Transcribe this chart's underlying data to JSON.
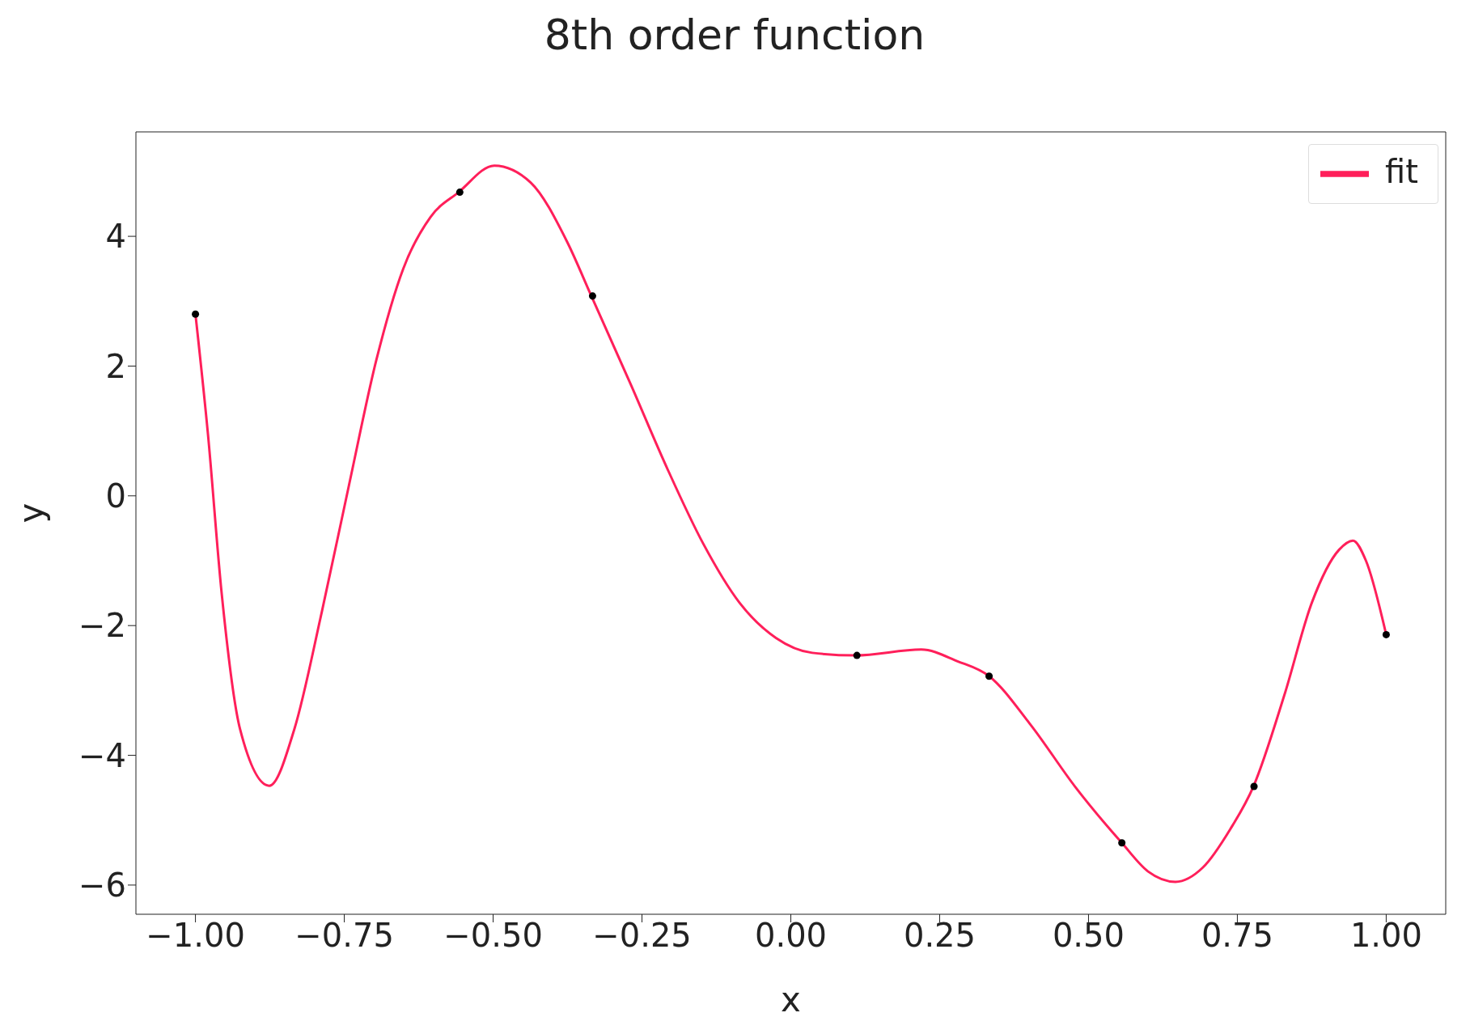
{
  "chart_data": {
    "type": "line",
    "title": "8th order function",
    "xlabel": "x",
    "ylabel": "y",
    "xlim": [
      -1.1,
      1.1
    ],
    "ylim": [
      -6.45,
      5.61
    ],
    "xticks": [
      {
        "value": -1,
        "label": "−1.00"
      },
      {
        "value": -0.75,
        "label": "−0.75"
      },
      {
        "value": -0.5,
        "label": "−0.50"
      },
      {
        "value": -0.25,
        "label": "−0.25"
      },
      {
        "value": 0,
        "label": "0.00"
      },
      {
        "value": 0.25,
        "label": "0.25"
      },
      {
        "value": 0.5,
        "label": "0.50"
      },
      {
        "value": 0.75,
        "label": "0.75"
      },
      {
        "value": 1,
        "label": "1.00"
      }
    ],
    "yticks": [
      {
        "value": -6,
        "label": "−6"
      },
      {
        "value": -4,
        "label": "−4"
      },
      {
        "value": -2,
        "label": "−2"
      },
      {
        "value": 0,
        "label": "0"
      },
      {
        "value": 2,
        "label": "2"
      },
      {
        "value": 4,
        "label": "4"
      }
    ],
    "legend": "top right",
    "grid": false,
    "series": [
      {
        "name": "fit",
        "color": "#ff1f5a",
        "marker": "none",
        "line_style": "solid",
        "x": [
          -1,
          -0.979,
          -0.956,
          -0.925,
          -0.876,
          -0.834,
          -0.788,
          -0.742,
          -0.696,
          -0.651,
          -0.605,
          -0.558,
          -0.498,
          -0.437,
          -0.376,
          -0.335,
          -0.269,
          -0.208,
          -0.147,
          -0.086,
          -0.025,
          0.036,
          0.109,
          0.219,
          0.28,
          0.333,
          0.402,
          0.478,
          0.556,
          0.6,
          0.646,
          0.692,
          0.738,
          0.777,
          0.829,
          0.875,
          0.921,
          0.944,
          0.966,
          1
        ],
        "values": [
          2.8,
          0.95,
          -1.5,
          -3.6,
          -4.47,
          -3.6,
          -1.8,
          0.17,
          2.1,
          3.5,
          4.3,
          4.68,
          5.09,
          4.83,
          3.92,
          3.08,
          1.72,
          0.43,
          -0.74,
          -1.65,
          -2.19,
          -2.42,
          -2.46,
          -2.37,
          -2.55,
          -2.78,
          -3.52,
          -4.49,
          -5.35,
          -5.79,
          -5.95,
          -5.73,
          -5.14,
          -4.48,
          -3.07,
          -1.65,
          -0.83,
          -0.69,
          -1.0,
          -2.14
        ]
      },
      {
        "type": "scatter",
        "color": "#000000",
        "marker": "circle",
        "x": [
          -1,
          -0.556,
          -0.333,
          0.111,
          0.333,
          0.556,
          0.778,
          1
        ],
        "values": [
          2.8,
          4.68,
          3.08,
          -2.46,
          -2.78,
          -5.35,
          -4.48,
          -2.14
        ]
      }
    ]
  }
}
